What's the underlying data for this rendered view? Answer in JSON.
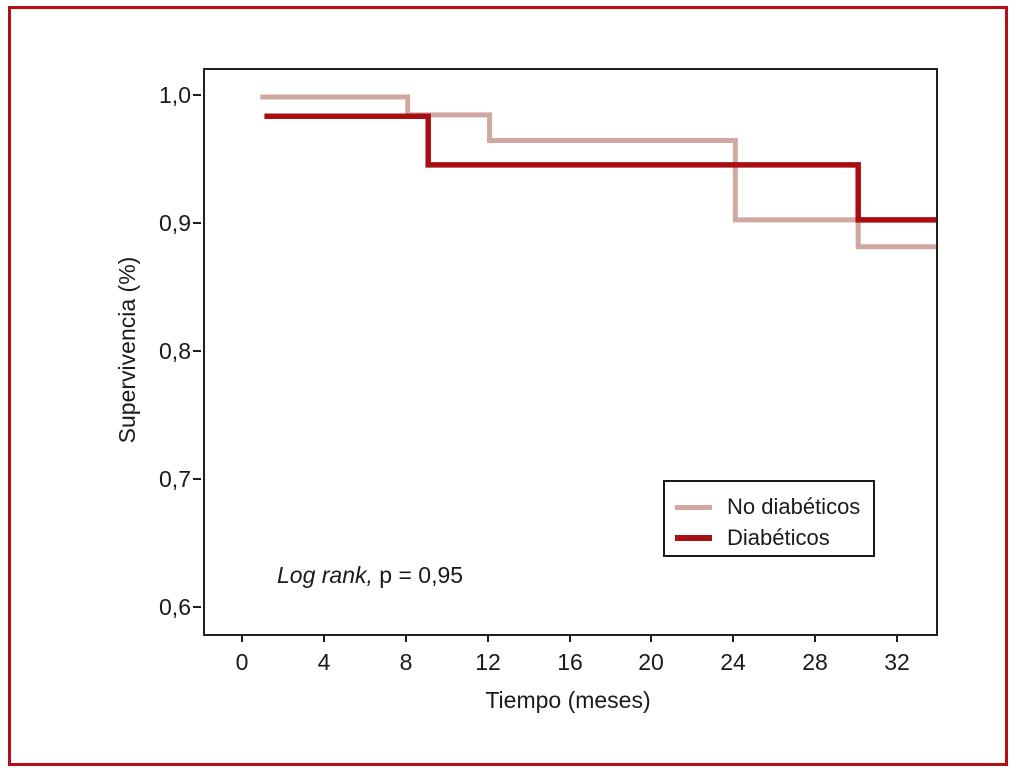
{
  "figure": {
    "border_color": "#b60d17",
    "background": "#ffffff"
  },
  "chart_data": {
    "type": "line",
    "subtype": "kaplan-meier-step",
    "title": "",
    "xlabel": "Tiempo (meses)",
    "ylabel": "Supervivencia (%)",
    "xlim": [
      -1.9,
      33.8
    ],
    "ylim": [
      0.5805,
      1.0211
    ],
    "grid": false,
    "legend_position": "inside-lower-right",
    "x_ticks": [
      {
        "value": 0,
        "label": "0"
      },
      {
        "value": 4,
        "label": "4"
      },
      {
        "value": 8,
        "label": "8"
      },
      {
        "value": 12,
        "label": "12"
      },
      {
        "value": 16,
        "label": "16"
      },
      {
        "value": 20,
        "label": "20"
      },
      {
        "value": 24,
        "label": "24"
      },
      {
        "value": 28,
        "label": "28"
      },
      {
        "value": 32,
        "label": "32"
      }
    ],
    "y_ticks": [
      {
        "value": 1.0,
        "label": "1,0"
      },
      {
        "value": 0.9,
        "label": "0,9"
      },
      {
        "value": 0.8,
        "label": "0,8"
      },
      {
        "value": 0.7,
        "label": "0,7"
      },
      {
        "value": 0.6,
        "label": "0,6"
      }
    ],
    "annotation": {
      "italic": "Log rank,",
      "regular": " p = 0,95"
    },
    "series": [
      {
        "name": "No diabéticos",
        "color": "#d0a8a0",
        "stroke_width": 5,
        "points": [
          [
            0.8,
            1.0
          ],
          [
            8,
            1.0
          ],
          [
            8,
            0.986
          ],
          [
            12,
            0.986
          ],
          [
            12,
            0.966
          ],
          [
            24,
            0.966
          ],
          [
            24,
            0.904
          ],
          [
            30,
            0.904
          ],
          [
            30,
            0.883
          ],
          [
            33.8,
            0.883
          ]
        ]
      },
      {
        "name": "Diabéticos",
        "color": "#a90e13",
        "stroke_width": 5.5,
        "points": [
          [
            1.0,
            0.985
          ],
          [
            9,
            0.985
          ],
          [
            9,
            0.947
          ],
          [
            30,
            0.947
          ],
          [
            30,
            0.904
          ],
          [
            33.8,
            0.904
          ]
        ]
      }
    ]
  }
}
